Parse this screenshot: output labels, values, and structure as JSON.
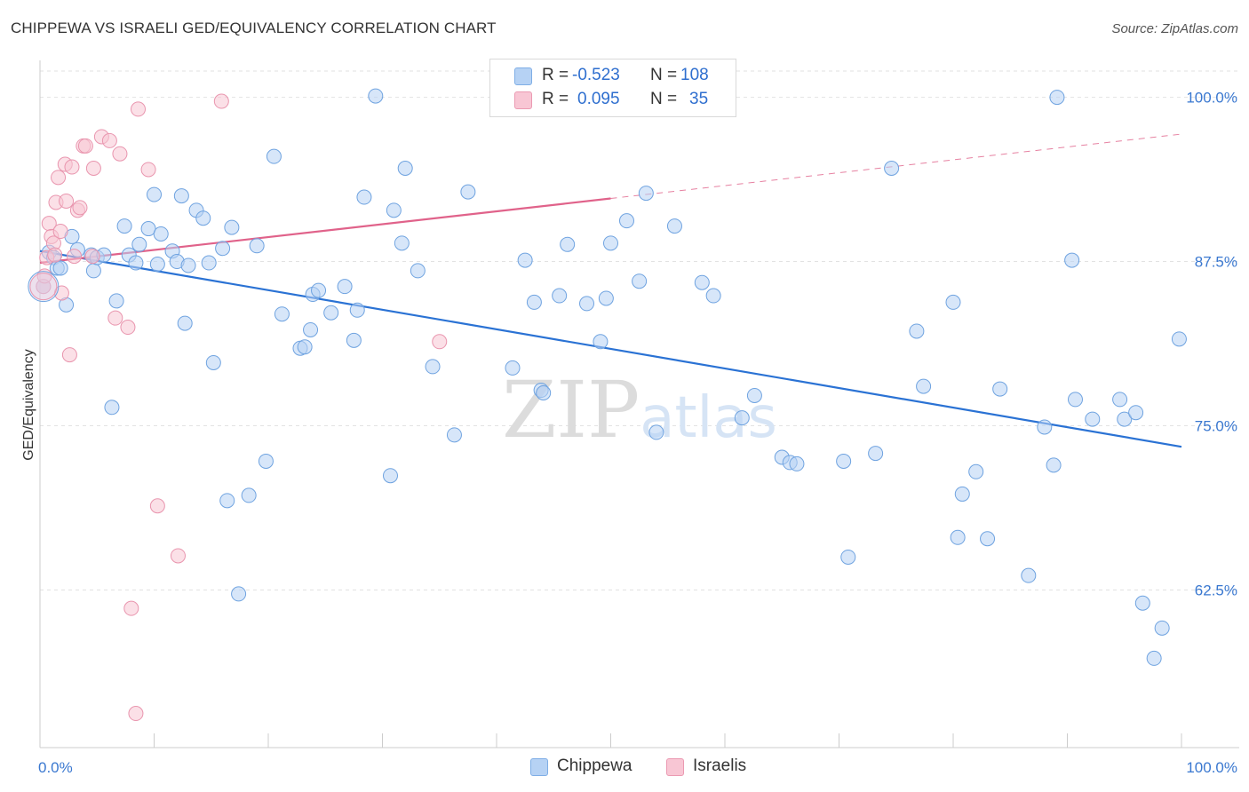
{
  "title": "CHIPPEWA VS ISRAELI GED/EQUIVALENCY CORRELATION CHART",
  "source": "Source: ZipAtlas.com",
  "colors": {
    "blue_fill": "#b6d2f4",
    "blue_stroke": "#6fa3e0",
    "blue_line": "#2a72d4",
    "pink_fill": "#f8c6d4",
    "pink_stroke": "#e995ae",
    "pink_line": "#e0628a",
    "axis_text": "#3a78d0",
    "grid": "#e2e2e2"
  },
  "legend": {
    "rows": [
      {
        "r_label": "R =",
        "r_value": "-0.523",
        "n_label": "N =",
        "n_value": "108"
      },
      {
        "r_label": "R =",
        "r_value": "0.095",
        "n_label": "N =",
        "n_value": "35"
      }
    ]
  },
  "bottom_legend": [
    "Chippewa",
    "Israelis"
  ],
  "watermark": "ZIPatlas",
  "chart_data": {
    "type": "scatter",
    "title": "CHIPPEWA VS ISRAELI GED/EQUIVALENCY CORRELATION CHART",
    "xlabel": "",
    "ylabel": "GED/Equivalency",
    "xlim": [
      0,
      100
    ],
    "ylim": [
      50.5,
      102
    ],
    "x_tick_labels": [
      "0.0%",
      "100.0%"
    ],
    "y_ticks": [
      62.5,
      75.0,
      87.5,
      100.0
    ],
    "y_tick_labels": [
      "62.5%",
      "75.0%",
      "87.5%",
      "100.0%"
    ],
    "grid": true,
    "series": [
      {
        "name": "Chippewa",
        "r": -0.523,
        "n": 108,
        "trend": {
          "x": [
            0,
            100
          ],
          "y": [
            88.3,
            73.4
          ]
        },
        "points": [
          [
            0.3,
            85.6
          ],
          [
            0.8,
            88.2
          ],
          [
            1.2,
            87.8
          ],
          [
            1.5,
            87
          ],
          [
            1.8,
            87
          ],
          [
            2.3,
            84.2
          ],
          [
            2.8,
            89.4
          ],
          [
            3.3,
            88.4
          ],
          [
            4.5,
            88
          ],
          [
            4.7,
            86.8
          ],
          [
            5,
            87.8
          ],
          [
            5.6,
            88
          ],
          [
            6.3,
            76.4
          ],
          [
            6.7,
            84.5
          ],
          [
            7.4,
            90.2
          ],
          [
            7.8,
            88
          ],
          [
            8.4,
            87.4
          ],
          [
            8.7,
            88.8
          ],
          [
            9.5,
            90
          ],
          [
            10,
            92.6
          ],
          [
            10.3,
            87.3
          ],
          [
            10.6,
            89.6
          ],
          [
            11.6,
            88.3
          ],
          [
            12,
            87.5
          ],
          [
            12.4,
            92.5
          ],
          [
            12.7,
            82.8
          ],
          [
            13,
            87.2
          ],
          [
            13.7,
            91.4
          ],
          [
            14.3,
            90.8
          ],
          [
            14.8,
            87.4
          ],
          [
            15.2,
            79.8
          ],
          [
            16,
            88.5
          ],
          [
            16.4,
            69.3
          ],
          [
            16.8,
            90.1
          ],
          [
            17.4,
            62.2
          ],
          [
            18.3,
            69.7
          ],
          [
            19,
            88.7
          ],
          [
            19.8,
            72.3
          ],
          [
            20.5,
            95.5
          ],
          [
            21.2,
            83.5
          ],
          [
            22.8,
            80.9
          ],
          [
            23.2,
            81
          ],
          [
            23.7,
            82.3
          ],
          [
            23.9,
            85
          ],
          [
            24.4,
            85.3
          ],
          [
            25.5,
            83.6
          ],
          [
            26.7,
            85.6
          ],
          [
            27.5,
            81.5
          ],
          [
            27.8,
            83.8
          ],
          [
            28.4,
            92.4
          ],
          [
            29.4,
            100.1
          ],
          [
            30.7,
            71.2
          ],
          [
            31,
            91.4
          ],
          [
            31.7,
            88.9
          ],
          [
            32,
            94.6
          ],
          [
            33.1,
            86.8
          ],
          [
            34.4,
            79.5
          ],
          [
            36.3,
            74.3
          ],
          [
            37.5,
            92.8
          ],
          [
            41.4,
            79.4
          ],
          [
            42.5,
            87.6
          ],
          [
            43.3,
            84.4
          ],
          [
            43.9,
            77.7
          ],
          [
            44.1,
            77.5
          ],
          [
            45.5,
            84.9
          ],
          [
            46.2,
            88.8
          ],
          [
            47.9,
            84.3
          ],
          [
            49.1,
            81.4
          ],
          [
            49.6,
            84.7
          ],
          [
            50,
            88.9
          ],
          [
            51.4,
            90.6
          ],
          [
            52.5,
            86
          ],
          [
            53.1,
            92.7
          ],
          [
            54,
            74.5
          ],
          [
            55.6,
            90.2
          ],
          [
            58,
            85.9
          ],
          [
            59,
            84.9
          ],
          [
            61.5,
            75.6
          ],
          [
            62.6,
            77.3
          ],
          [
            65,
            72.6
          ],
          [
            65.7,
            72.2
          ],
          [
            66.3,
            72.1
          ],
          [
            70.4,
            72.3
          ],
          [
            70.8,
            65
          ],
          [
            73.2,
            72.9
          ],
          [
            74.6,
            94.6
          ],
          [
            76.8,
            82.2
          ],
          [
            77.4,
            78
          ],
          [
            80,
            84.4
          ],
          [
            80.4,
            66.5
          ],
          [
            80.8,
            69.8
          ],
          [
            82,
            71.5
          ],
          [
            83,
            66.4
          ],
          [
            84.1,
            77.8
          ],
          [
            86.6,
            63.6
          ],
          [
            88,
            74.9
          ],
          [
            88.8,
            72
          ],
          [
            89.1,
            100
          ],
          [
            90.4,
            87.6
          ],
          [
            90.7,
            77
          ],
          [
            92.2,
            75.5
          ],
          [
            94.6,
            77
          ],
          [
            95,
            75.5
          ],
          [
            96,
            76
          ],
          [
            96.6,
            61.5
          ],
          [
            97.6,
            57.3
          ],
          [
            98.3,
            59.6
          ],
          [
            99.8,
            81.6
          ]
        ]
      },
      {
        "name": "Israelis",
        "r": 0.095,
        "n": 35,
        "trend": {
          "x": [
            0,
            50
          ],
          "y": [
            87.4,
            92.3
          ]
        },
        "trend_extension": {
          "x": [
            50,
            100
          ],
          "y": [
            92.3,
            97.2
          ]
        },
        "points": [
          [
            0.3,
            85.6
          ],
          [
            0.4,
            86.4
          ],
          [
            0.6,
            87.8
          ],
          [
            0.8,
            90.4
          ],
          [
            1,
            89.4
          ],
          [
            1.2,
            88.9
          ],
          [
            1.3,
            88
          ],
          [
            1.4,
            92
          ],
          [
            1.6,
            93.9
          ],
          [
            1.8,
            89.8
          ],
          [
            1.9,
            85.1
          ],
          [
            2.2,
            94.9
          ],
          [
            2.3,
            92.1
          ],
          [
            2.6,
            80.4
          ],
          [
            2.8,
            94.7
          ],
          [
            3,
            87.9
          ],
          [
            3.3,
            91.4
          ],
          [
            3.5,
            91.6
          ],
          [
            3.8,
            96.3
          ],
          [
            4,
            96.3
          ],
          [
            4.6,
            87.9
          ],
          [
            4.7,
            94.6
          ],
          [
            5.4,
            97
          ],
          [
            6.1,
            96.7
          ],
          [
            6.6,
            83.2
          ],
          [
            7,
            95.7
          ],
          [
            7.7,
            82.5
          ],
          [
            8,
            61.1
          ],
          [
            8.4,
            53.1
          ],
          [
            8.6,
            99.1
          ],
          [
            9.5,
            94.5
          ],
          [
            10.3,
            68.9
          ],
          [
            12.1,
            65.1
          ],
          [
            15.9,
            99.7
          ],
          [
            35,
            81.4
          ]
        ]
      }
    ]
  }
}
